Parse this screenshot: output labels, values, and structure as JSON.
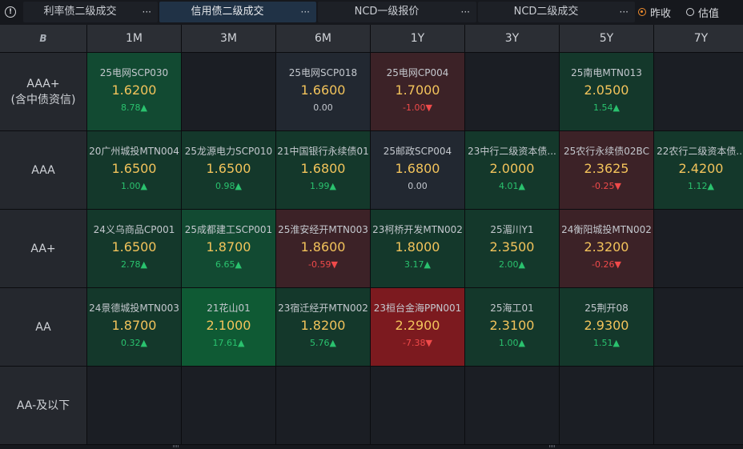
{
  "tabs": [
    {
      "label": "利率债二级成交",
      "more": "···",
      "active": false
    },
    {
      "label": "信用债二级成交",
      "more": "···",
      "active": true
    },
    {
      "label": "NCD一级报价",
      "more": "···",
      "active": false
    },
    {
      "label": "NCD二级成交",
      "more": "···",
      "active": false
    }
  ],
  "info_icon_text": "!",
  "radio": [
    {
      "label": "昨收",
      "checked": true
    },
    {
      "label": "估值",
      "checked": false
    }
  ],
  "corner_icon_text": "B",
  "columns": [
    "1M",
    "3M",
    "6M",
    "1Y",
    "3Y",
    "5Y",
    "7Y"
  ],
  "rows": [
    {
      "label": "AAA+\n(含中债资信)",
      "cells": [
        {
          "bond": "25电网SCP030",
          "rate": "1.6200",
          "change": "8.78▲",
          "dir": "up",
          "tone": "g2"
        },
        null,
        {
          "bond": "25电网SCP018",
          "rate": "1.6600",
          "change": "0.00",
          "dir": "flat",
          "tone": "n"
        },
        {
          "bond": "25电网CP004",
          "rate": "1.7000",
          "change": "-1.00▼",
          "dir": "down",
          "tone": "r1"
        },
        null,
        {
          "bond": "25南电MTN013",
          "rate": "2.0500",
          "change": "1.54▲",
          "dir": "up",
          "tone": "g1"
        },
        null
      ]
    },
    {
      "label": "AAA",
      "cells": [
        {
          "bond": "20广州城投MTN004",
          "rate": "1.6500",
          "change": "1.00▲",
          "dir": "up",
          "tone": "g1"
        },
        {
          "bond": "25龙源电力SCP010",
          "rate": "1.6500",
          "change": "0.98▲",
          "dir": "up",
          "tone": "g1"
        },
        {
          "bond": "21中国银行永续债01",
          "rate": "1.6800",
          "change": "1.99▲",
          "dir": "up",
          "tone": "g1"
        },
        {
          "bond": "25邮政SCP004",
          "rate": "1.6800",
          "change": "0.00",
          "dir": "flat",
          "tone": "n"
        },
        {
          "bond": "23中行二级资本债...",
          "rate": "2.0000",
          "change": "4.01▲",
          "dir": "up",
          "tone": "g1"
        },
        {
          "bond": "25农行永续债02BC",
          "rate": "2.3625",
          "change": "-0.25▼",
          "dir": "down",
          "tone": "r1"
        },
        {
          "bond": "22农行二级资本债...",
          "rate": "2.4200",
          "change": "1.12▲",
          "dir": "up",
          "tone": "g1"
        }
      ]
    },
    {
      "label": "AA+",
      "cells": [
        {
          "bond": "24义乌商品CP001",
          "rate": "1.6500",
          "change": "2.78▲",
          "dir": "up",
          "tone": "g1"
        },
        {
          "bond": "25成都建工SCP001",
          "rate": "1.8700",
          "change": "6.65▲",
          "dir": "up",
          "tone": "g2"
        },
        {
          "bond": "25淮安经开MTN003",
          "rate": "1.8600",
          "change": "-0.59▼",
          "dir": "down",
          "tone": "r1"
        },
        {
          "bond": "23柯桥开发MTN002",
          "rate": "1.8000",
          "change": "3.17▲",
          "dir": "up",
          "tone": "g1"
        },
        {
          "bond": "25湄川Y1",
          "rate": "2.3500",
          "change": "2.00▲",
          "dir": "up",
          "tone": "g1"
        },
        {
          "bond": "24衡阳城投MTN002",
          "rate": "2.3200",
          "change": "-0.26▼",
          "dir": "down",
          "tone": "r1"
        },
        null
      ]
    },
    {
      "label": "AA",
      "cells": [
        {
          "bond": "24景德城投MTN003",
          "rate": "1.8700",
          "change": "0.32▲",
          "dir": "up",
          "tone": "g1"
        },
        {
          "bond": "21花山01",
          "rate": "2.1000",
          "change": "17.61▲",
          "dir": "up",
          "tone": "g3"
        },
        {
          "bond": "23宿迁经开MTN002",
          "rate": "1.8200",
          "change": "5.76▲",
          "dir": "up",
          "tone": "g1"
        },
        {
          "bond": "23桓台金海PPN001",
          "rate": "2.2900",
          "change": "-7.38▼",
          "dir": "down",
          "tone": "r2"
        },
        {
          "bond": "25海工01",
          "rate": "2.3100",
          "change": "1.00▲",
          "dir": "up",
          "tone": "g1"
        },
        {
          "bond": "25荆开08",
          "rate": "2.9300",
          "change": "1.51▲",
          "dir": "up",
          "tone": "g1"
        },
        null
      ]
    },
    {
      "label": "AA-及以下",
      "cells": [
        null,
        null,
        null,
        null,
        null,
        null,
        null
      ]
    }
  ],
  "colors": {
    "accent_radio": "#f08c2d",
    "rate_text": "#f2c35b",
    "up": "#2ac26e",
    "down": "#f04a4a",
    "active_tab": "#203246"
  }
}
